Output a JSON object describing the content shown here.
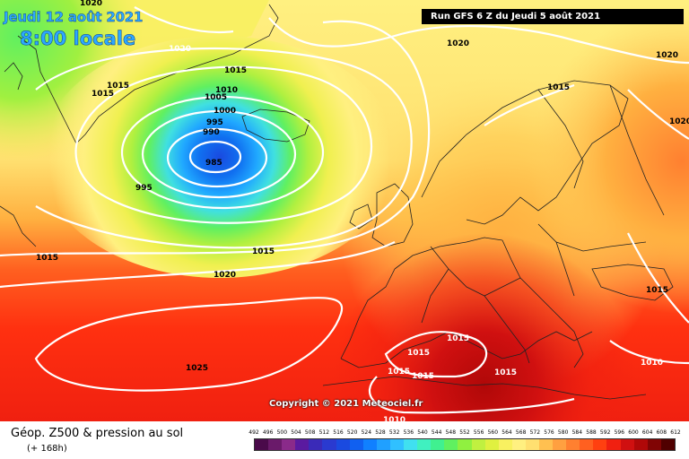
{
  "header": {
    "date": "Jeudi 12 août 2021",
    "time": "8:00 locale",
    "run": "Run GFS 6 Z du Jeudi 5 août 2021"
  },
  "copyright": "Copyright © 2021 Meteociel.fr",
  "legend": {
    "title": "Géop. Z500 & pression au sol",
    "subtitle": "(+ 168h)",
    "scale_values": [
      "492",
      "496",
      "500",
      "504",
      "508",
      "512",
      "516",
      "520",
      "524",
      "528",
      "532",
      "536",
      "540",
      "544",
      "548",
      "552",
      "556",
      "560",
      "564",
      "568",
      "572",
      "576",
      "580",
      "584",
      "588",
      "592",
      "596",
      "600",
      "604",
      "608",
      "612"
    ],
    "scale_colors": [
      "#4a0a4a",
      "#6a1a6a",
      "#8a2a8a",
      "#5a1aa0",
      "#3a2ab8",
      "#2a3ad0",
      "#1a4ae0",
      "#1060f0",
      "#1080ff",
      "#20a0ff",
      "#30c0ff",
      "#40e0f0",
      "#40f0c0",
      "#40f090",
      "#60f060",
      "#90f040",
      "#c0f040",
      "#e0f040",
      "#f8f060",
      "#fff080",
      "#ffe070",
      "#ffc050",
      "#ffa040",
      "#ff8030",
      "#ff6020",
      "#ff4010",
      "#f02010",
      "#d01010",
      "#b00808",
      "#800404",
      "#500000"
    ]
  },
  "map": {
    "isobar_labels": [
      {
        "text": "1020"
      },
      {
        "text": "1015"
      },
      {
        "text": "1015"
      },
      {
        "text": "1015"
      },
      {
        "text": "1010"
      },
      {
        "text": "1005"
      },
      {
        "text": "1000"
      },
      {
        "text": "995"
      },
      {
        "text": "990"
      },
      {
        "text": "985"
      },
      {
        "text": "995"
      },
      {
        "text": "1015"
      },
      {
        "text": "1015"
      },
      {
        "text": "1020"
      },
      {
        "text": "1025"
      },
      {
        "text": "1020"
      },
      {
        "text": "1015"
      },
      {
        "text": "1020"
      },
      {
        "text": "1020"
      },
      {
        "text": "1015"
      },
      {
        "text": "1015"
      },
      {
        "text": "1015"
      },
      {
        "text": "1015"
      },
      {
        "text": "1015"
      },
      {
        "text": "1010"
      },
      {
        "text": "1010"
      },
      {
        "text": "1020"
      },
      {
        "text": "1015"
      }
    ]
  }
}
